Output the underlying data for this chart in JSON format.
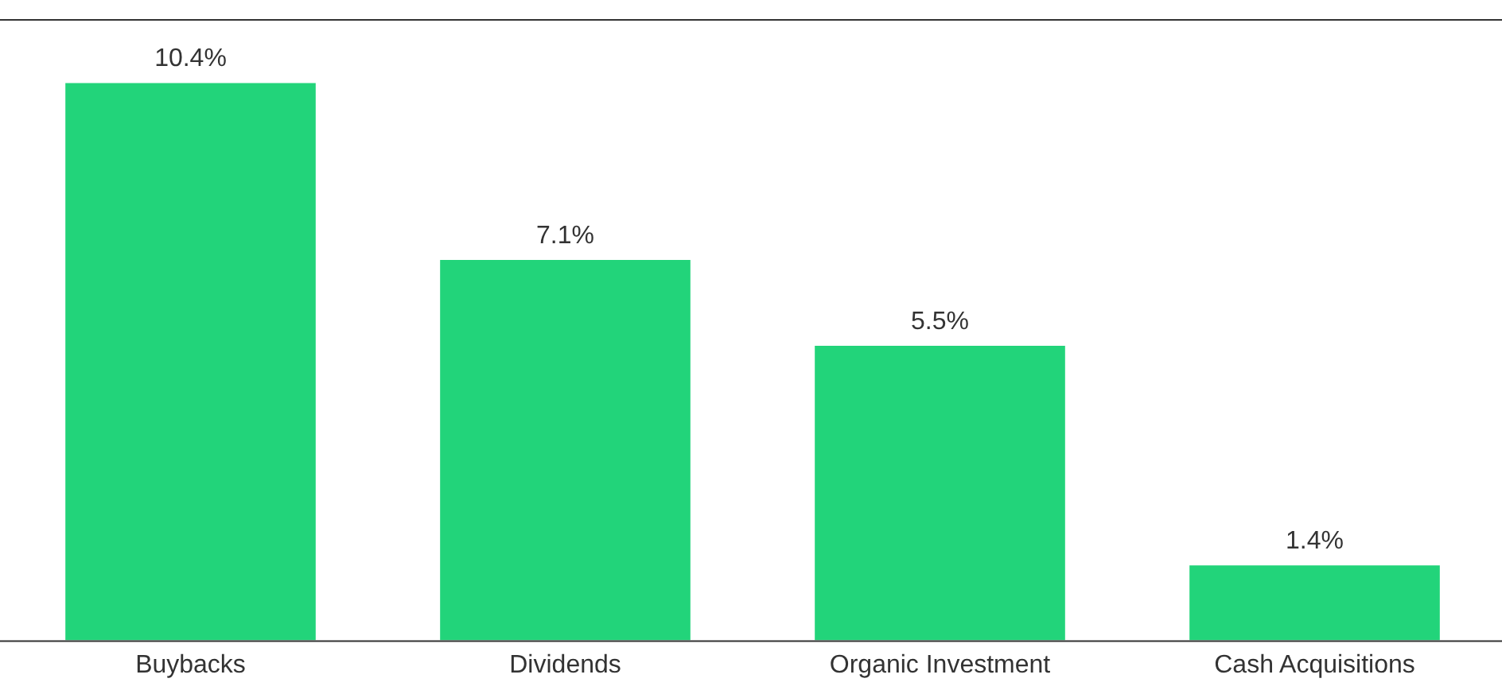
{
  "chart_data": {
    "type": "bar",
    "categories": [
      "Buybacks",
      "Dividends",
      "Organic Investment",
      "Cash Acquisitions"
    ],
    "values": [
      10.4,
      7.1,
      5.5,
      1.4
    ],
    "color": "#22d47a",
    "value_labels": [
      "10.4%",
      "7.1%",
      "5.5%",
      "1.4%"
    ],
    "grid": false,
    "legend": false
  }
}
